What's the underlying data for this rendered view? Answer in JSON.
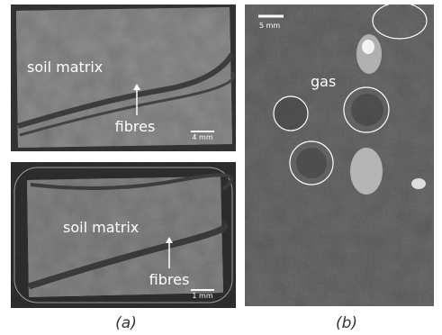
{
  "panel_a": {
    "top": {
      "matrix_label": "soil matrix",
      "fibre_label": "fibres",
      "scale_label": "4 mm"
    },
    "bottom": {
      "matrix_label": "soil matrix",
      "fibre_label": "fibres",
      "scale_label": "1 mm"
    },
    "caption": "(a)"
  },
  "panel_b": {
    "scale_label": "5 mm",
    "gas_label": "gas",
    "caption": "(b)"
  }
}
